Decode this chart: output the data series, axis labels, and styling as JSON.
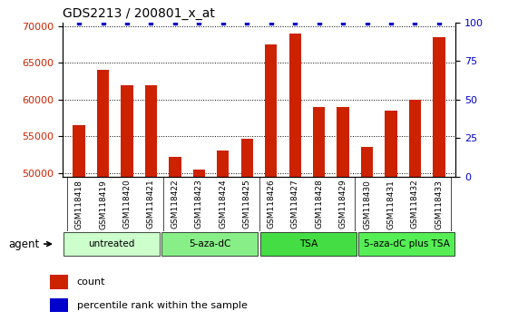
{
  "title": "GDS2213 / 200801_x_at",
  "categories": [
    "GSM118418",
    "GSM118419",
    "GSM118420",
    "GSM118421",
    "GSM118422",
    "GSM118423",
    "GSM118424",
    "GSM118425",
    "GSM118426",
    "GSM118427",
    "GSM118428",
    "GSM118429",
    "GSM118430",
    "GSM118431",
    "GSM118432",
    "GSM118433"
  ],
  "values": [
    56500,
    64000,
    62000,
    62000,
    52200,
    50500,
    53000,
    54700,
    67500,
    69000,
    59000,
    59000,
    53500,
    58500,
    60000,
    68500
  ],
  "percentile_values": [
    100,
    100,
    100,
    100,
    100,
    100,
    100,
    100,
    100,
    100,
    100,
    100,
    100,
    100,
    100,
    100
  ],
  "bar_color": "#CC2200",
  "dot_color": "#0000CC",
  "ylim_left": [
    49500,
    70500
  ],
  "ylim_right": [
    0,
    100
  ],
  "yticks_left": [
    50000,
    55000,
    60000,
    65000,
    70000
  ],
  "yticks_right": [
    0,
    25,
    50,
    75,
    100
  ],
  "groups": [
    {
      "label": "untreated",
      "start": 0,
      "end": 4,
      "color": "#CCFFCC"
    },
    {
      "label": "5-aza-dC",
      "start": 4,
      "end": 8,
      "color": "#88EE88"
    },
    {
      "label": "TSA",
      "start": 8,
      "end": 12,
      "color": "#44DD44"
    },
    {
      "label": "5-aza-dC plus TSA",
      "start": 12,
      "end": 16,
      "color": "#55EE55"
    }
  ],
  "group_row_label": "agent",
  "legend_count_label": "count",
  "legend_pct_label": "percentile rank within the sample",
  "background_color": "#FFFFFF",
  "tick_area_color": "#CCCCCC"
}
